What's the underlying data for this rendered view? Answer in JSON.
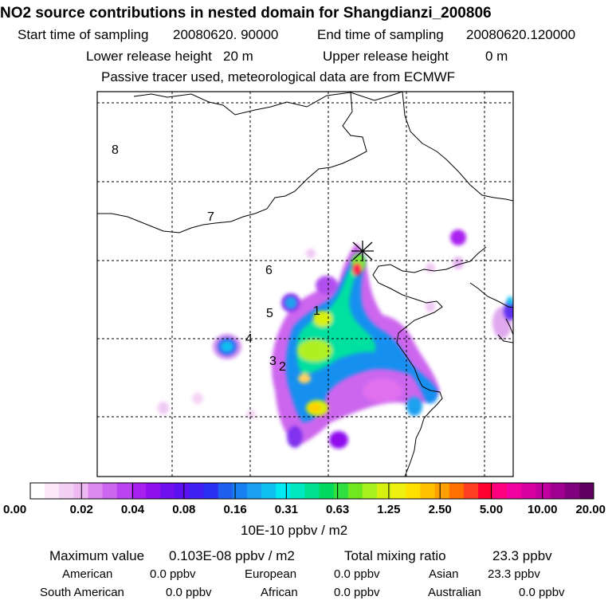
{
  "header": {
    "title": "NO2 source contributions in nested domain for Shangdianzi_200806",
    "start_label": "Start time of sampling",
    "start_value": "20080620. 90000",
    "end_label": "End time of sampling",
    "end_value": "20080620.120000",
    "lower_label": "Lower release height",
    "lower_value": "20 m",
    "upper_label": "Upper release height",
    "upper_value": "0 m",
    "note": "Passive tracer used, meteorological data are from ECMWF"
  },
  "map": {
    "region_labels": [
      "1",
      "2",
      "3",
      "4",
      "5",
      "6",
      "7",
      "8"
    ],
    "receptor_marker": "receptor-star-icon"
  },
  "colorbar": {
    "tick_labels": [
      "0.00",
      "0.02",
      "0.04",
      "0.08",
      "0.16",
      "0.31",
      "0.63",
      "1.25",
      "2.50",
      "5.00",
      "10.00",
      "20.00"
    ],
    "colors": [
      "#ffffff",
      "#fbe8fb",
      "#f5d0f5",
      "#eeb8f0",
      "#dd88ee",
      "#cc66ee",
      "#bb44f0",
      "#a820f0",
      "#9010ee",
      "#7010ee",
      "#5a10f0",
      "#4020f0",
      "#2a30f0",
      "#2060f0",
      "#1880f0",
      "#1aa0f0",
      "#10c0f0",
      "#00e8f0",
      "#00e8c0",
      "#00e090",
      "#00d860",
      "#30e040",
      "#70e820",
      "#a8f020",
      "#d8f010",
      "#f0f010",
      "#ffe000",
      "#ffc000",
      "#ffa000",
      "#ff7000",
      "#ff4020",
      "#ff0030",
      "#ff0080",
      "#f000a0",
      "#d800a0",
      "#c000a0",
      "#a00090",
      "#800080",
      "#600060"
    ],
    "unit": "10E-10 ppbv / m2"
  },
  "footer": {
    "max_label": "Maximum value",
    "max_value": "0.103E-08 ppbv / m2",
    "total_label": "Total mixing ratio",
    "total_value": "23.3 ppbv",
    "american_label": "American",
    "american_value": "0.0 ppbv",
    "european_label": "European",
    "european_value": "0.0 ppbv",
    "asian_label": "Asian",
    "asian_value": "23.3 ppbv",
    "south_american_label": "South American",
    "south_american_value": "0.0 ppbv",
    "african_label": "African",
    "african_value": "0.0 ppbv",
    "australian_label": "Australian",
    "australian_value": "0.0 ppbv"
  }
}
